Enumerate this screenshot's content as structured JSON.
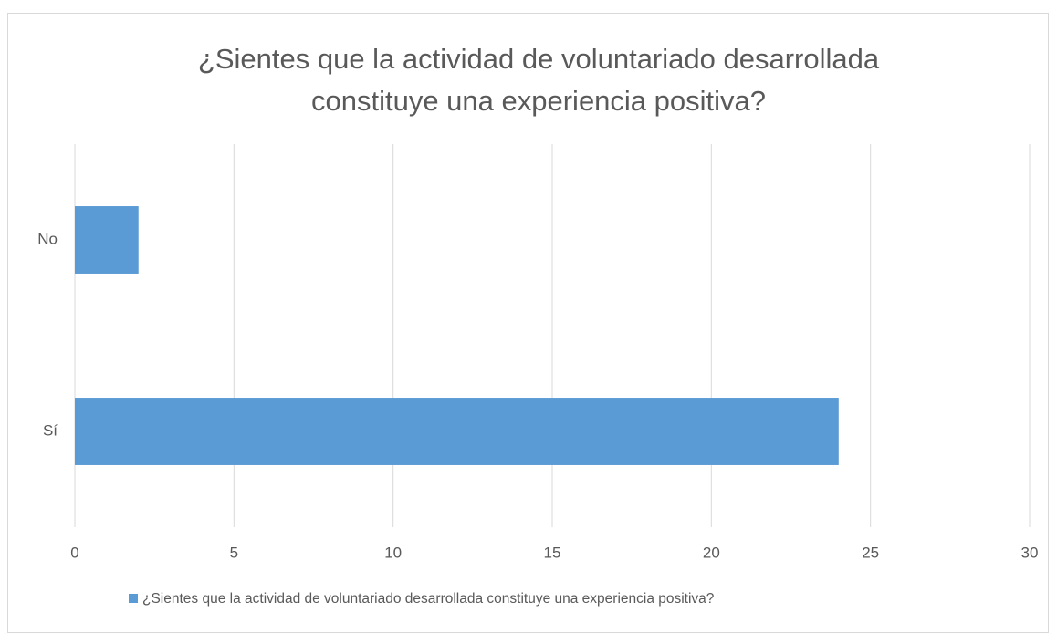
{
  "chart_data": {
    "type": "barh",
    "title": "¿Sientes que la actividad de voluntariado desarrollada constituye una experiencia positiva?",
    "categories": [
      "No",
      "Sí"
    ],
    "series": [
      {
        "name": "¿Sientes que la actividad de voluntariado desarrollada constituye una experiencia positiva?",
        "color": "#5b9bd5",
        "values": [
          2,
          24
        ]
      }
    ],
    "xlim": [
      0,
      30
    ],
    "xticks": [
      0,
      5,
      10,
      15,
      20,
      25,
      30
    ],
    "grid": true,
    "legend": "bottom"
  }
}
